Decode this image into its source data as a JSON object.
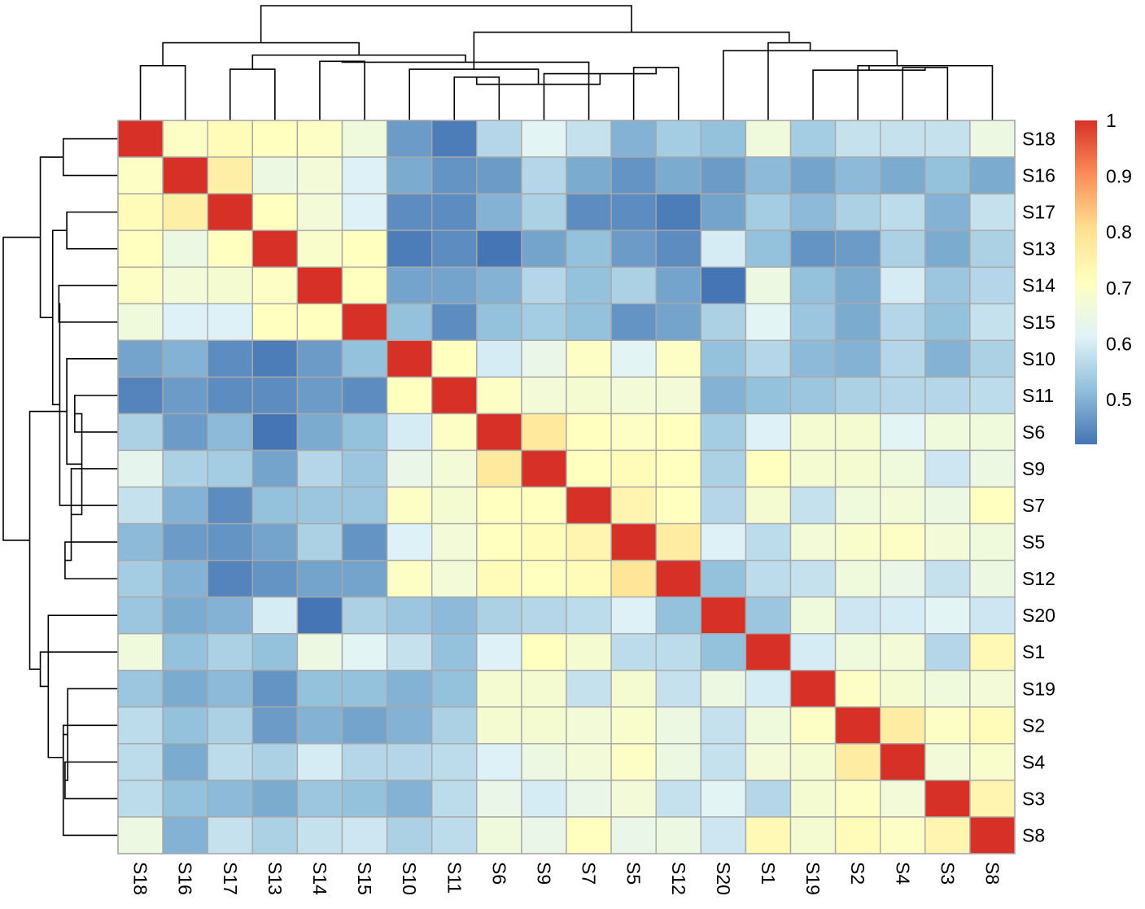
{
  "chart_data": {
    "type": "heatmap",
    "title": "",
    "order": [
      "S18",
      "S16",
      "S17",
      "S13",
      "S14",
      "S15",
      "S10",
      "S11",
      "S6",
      "S9",
      "S7",
      "S5",
      "S12",
      "S20",
      "S1",
      "S19",
      "S2",
      "S4",
      "S3",
      "S8"
    ],
    "matrix": [
      [
        1.0,
        0.7,
        0.72,
        0.71,
        0.7,
        0.66,
        0.47,
        0.43,
        0.56,
        0.62,
        0.58,
        0.5,
        0.54,
        0.52,
        0.66,
        0.54,
        0.58,
        0.58,
        0.58,
        0.65
      ],
      [
        0.7,
        1.0,
        0.76,
        0.65,
        0.67,
        0.61,
        0.49,
        0.46,
        0.47,
        0.56,
        0.49,
        0.46,
        0.49,
        0.47,
        0.51,
        0.48,
        0.51,
        0.49,
        0.52,
        0.49
      ],
      [
        0.72,
        0.76,
        1.0,
        0.71,
        0.67,
        0.61,
        0.45,
        0.45,
        0.5,
        0.55,
        0.45,
        0.45,
        0.43,
        0.48,
        0.54,
        0.51,
        0.55,
        0.57,
        0.5,
        0.58
      ],
      [
        0.71,
        0.65,
        0.71,
        1.0,
        0.69,
        0.71,
        0.43,
        0.45,
        0.42,
        0.48,
        0.52,
        0.47,
        0.45,
        0.6,
        0.52,
        0.46,
        0.47,
        0.55,
        0.49,
        0.55
      ],
      [
        0.7,
        0.67,
        0.68,
        0.7,
        1.0,
        0.71,
        0.48,
        0.48,
        0.5,
        0.56,
        0.52,
        0.55,
        0.48,
        0.42,
        0.65,
        0.52,
        0.49,
        0.6,
        0.53,
        0.56
      ],
      [
        0.66,
        0.61,
        0.61,
        0.71,
        0.71,
        1.0,
        0.52,
        0.45,
        0.52,
        0.54,
        0.52,
        0.46,
        0.48,
        0.55,
        0.62,
        0.53,
        0.49,
        0.56,
        0.52,
        0.58
      ],
      [
        0.48,
        0.5,
        0.45,
        0.43,
        0.47,
        0.52,
        1.0,
        0.71,
        0.6,
        0.64,
        0.7,
        0.62,
        0.7,
        0.52,
        0.56,
        0.51,
        0.5,
        0.56,
        0.5,
        0.55
      ],
      [
        0.44,
        0.47,
        0.45,
        0.45,
        0.47,
        0.45,
        0.71,
        1.0,
        0.7,
        0.67,
        0.68,
        0.67,
        0.67,
        0.5,
        0.52,
        0.53,
        0.55,
        0.56,
        0.56,
        0.57
      ],
      [
        0.55,
        0.47,
        0.51,
        0.42,
        0.49,
        0.52,
        0.6,
        0.7,
        1.0,
        0.78,
        0.71,
        0.7,
        0.71,
        0.54,
        0.61,
        0.68,
        0.68,
        0.62,
        0.66,
        0.66
      ],
      [
        0.63,
        0.55,
        0.54,
        0.48,
        0.56,
        0.53,
        0.64,
        0.67,
        0.78,
        1.0,
        0.71,
        0.72,
        0.71,
        0.55,
        0.71,
        0.68,
        0.68,
        0.66,
        0.59,
        0.65
      ],
      [
        0.58,
        0.5,
        0.45,
        0.52,
        0.53,
        0.53,
        0.7,
        0.68,
        0.71,
        0.71,
        1.0,
        0.74,
        0.71,
        0.56,
        0.68,
        0.58,
        0.66,
        0.67,
        0.65,
        0.71
      ],
      [
        0.51,
        0.47,
        0.46,
        0.48,
        0.55,
        0.46,
        0.61,
        0.67,
        0.71,
        0.72,
        0.74,
        1.0,
        0.77,
        0.61,
        0.57,
        0.67,
        0.69,
        0.7,
        0.67,
        0.66
      ],
      [
        0.54,
        0.5,
        0.44,
        0.46,
        0.48,
        0.48,
        0.7,
        0.67,
        0.72,
        0.71,
        0.72,
        0.79,
        1.0,
        0.52,
        0.57,
        0.58,
        0.66,
        0.64,
        0.58,
        0.65
      ],
      [
        0.53,
        0.49,
        0.5,
        0.6,
        0.42,
        0.55,
        0.53,
        0.51,
        0.55,
        0.56,
        0.57,
        0.61,
        0.52,
        1.0,
        0.53,
        0.66,
        0.59,
        0.6,
        0.62,
        0.59
      ],
      [
        0.66,
        0.52,
        0.55,
        0.52,
        0.65,
        0.62,
        0.58,
        0.52,
        0.61,
        0.71,
        0.68,
        0.57,
        0.57,
        0.52,
        1.0,
        0.6,
        0.66,
        0.67,
        0.56,
        0.73
      ],
      [
        0.53,
        0.49,
        0.51,
        0.46,
        0.52,
        0.52,
        0.5,
        0.52,
        0.68,
        0.68,
        0.58,
        0.68,
        0.58,
        0.65,
        0.6,
        1.0,
        0.7,
        0.68,
        0.66,
        0.67
      ],
      [
        0.57,
        0.52,
        0.55,
        0.47,
        0.5,
        0.48,
        0.5,
        0.55,
        0.68,
        0.68,
        0.67,
        0.69,
        0.65,
        0.58,
        0.66,
        0.7,
        1.0,
        0.77,
        0.7,
        0.72
      ],
      [
        0.57,
        0.49,
        0.57,
        0.55,
        0.6,
        0.56,
        0.56,
        0.57,
        0.61,
        0.65,
        0.67,
        0.7,
        0.65,
        0.58,
        0.67,
        0.68,
        0.77,
        1.0,
        0.67,
        0.69
      ],
      [
        0.57,
        0.52,
        0.51,
        0.49,
        0.53,
        0.52,
        0.5,
        0.57,
        0.64,
        0.6,
        0.64,
        0.67,
        0.58,
        0.62,
        0.56,
        0.68,
        0.7,
        0.67,
        1.0,
        0.74
      ],
      [
        0.65,
        0.5,
        0.58,
        0.55,
        0.58,
        0.59,
        0.55,
        0.57,
        0.66,
        0.64,
        0.71,
        0.64,
        0.65,
        0.59,
        0.73,
        0.68,
        0.72,
        0.7,
        0.74,
        1.0
      ]
    ],
    "color_scale": {
      "min": 0.42,
      "max": 1.0,
      "stops": [
        "#4575B4",
        "#91BFDB",
        "#E0F3F8",
        "#FFFFBF",
        "#FEE090",
        "#FC8D59",
        "#D73027"
      ],
      "legend_ticks": [
        "1",
        "0.9",
        "0.8",
        "0.7",
        "0.6",
        "0.5"
      ]
    },
    "dendrogram": {
      "merges": [
        [
          1,
          2,
          0.62
        ],
        [
          3,
          4,
          0.58
        ],
        [
          18,
          19,
          0.6
        ],
        [
          17,
          20,
          0.62
        ],
        [
          16,
          -3,
          0.57
        ],
        [
          5,
          6,
          0.67
        ],
        [
          12,
          13,
          0.6
        ],
        [
          10,
          -7,
          0.53
        ],
        [
          8,
          9,
          0.49
        ],
        [
          -8,
          -9,
          0.41
        ],
        [
          7,
          -10,
          0.58
        ],
        [
          11,
          -6,
          0.66
        ],
        [
          -2,
          -12,
          0.74
        ],
        [
          -4,
          -5,
          0.62
        ],
        [
          -14,
          14,
          0.79
        ],
        [
          15,
          -15,
          0.88
        ],
        [
          -1,
          -13,
          0.88
        ],
        [
          -11,
          -16,
          1.0
        ],
        [
          -17,
          -18,
          1.3
        ]
      ]
    }
  }
}
